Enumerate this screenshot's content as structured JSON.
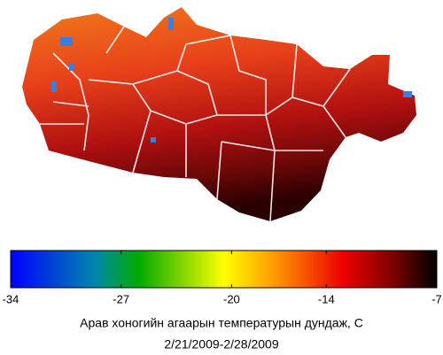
{
  "colorbar": {
    "lim": [
      -34,
      -7
    ],
    "ticks": [
      -34,
      -27,
      -20,
      -14,
      -7
    ]
  },
  "caption": {
    "title": "Арав хоногийн агаарын температурын дундаж, C",
    "dates": "2/21/2009-2/28/2009"
  }
}
